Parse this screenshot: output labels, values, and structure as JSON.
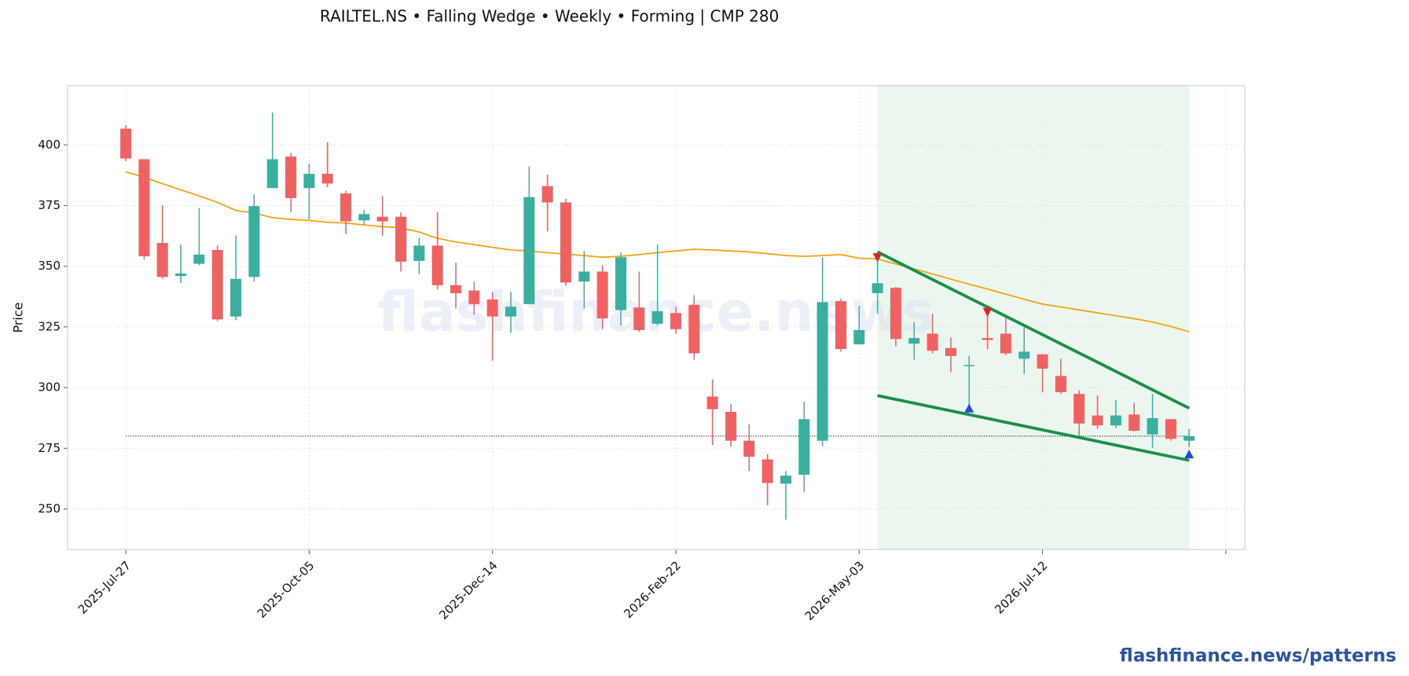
{
  "chart_data": {
    "type": "candlestick",
    "title": "RAILTEL.NS  •  Falling Wedge  •  Weekly  •  Forming  |  CMP 280",
    "y_label": "Price",
    "watermark": "flashfinance.news",
    "footer": "flashfinance.news/patterns",
    "categories": [
      "2025-Jul-27",
      null,
      null,
      null,
      null,
      null,
      null,
      null,
      null,
      null,
      "2025-Oct-05",
      null,
      null,
      null,
      null,
      null,
      null,
      null,
      null,
      null,
      "2025-Dec-14",
      null,
      null,
      null,
      null,
      null,
      null,
      null,
      null,
      null,
      "2026-Feb-22",
      null,
      null,
      null,
      null,
      null,
      null,
      null,
      null,
      null,
      "2026-May-03",
      null,
      null,
      null,
      null,
      null,
      null,
      null,
      null,
      null,
      "2026-Jul-12",
      null,
      null,
      null,
      null,
      null,
      null,
      null,
      null
    ],
    "open": [
      406.7,
      394.1,
      359.6,
      346,
      351,
      356.7,
      329.3,
      345.6,
      382.2,
      395.2,
      382.2,
      388.1,
      380,
      368.9,
      370.4,
      370.4,
      352.2,
      358.5,
      342.2,
      340,
      336.3,
      329.3,
      334.4,
      383,
      376.3,
      343.7,
      347.8,
      331.9,
      333,
      326.3,
      330.7,
      334.1,
      296.3,
      290,
      278.1,
      270.4,
      260.4,
      264.1,
      278.1,
      335.6,
      317.8,
      338.9,
      341.1,
      318.1,
      322.2,
      316.3,
      308.9,
      320.4,
      322.2,
      311.9,
      313.7,
      304.8,
      297.4,
      288.5,
      284.4,
      288.9,
      280.7,
      287,
      278.1
    ],
    "high": [
      408.1,
      394.1,
      375.2,
      358.9,
      374,
      358.5,
      362.6,
      379.6,
      413.3,
      396.7,
      392.2,
      401.1,
      381.1,
      373.3,
      378.9,
      372.2,
      361.8,
      372.2,
      351.5,
      343.7,
      339.3,
      339.3,
      391.1,
      387.8,
      377.8,
      356.3,
      350.4,
      355.6,
      347.8,
      358.9,
      333.3,
      338.1,
      303.3,
      293.3,
      284.8,
      272.6,
      265.6,
      294.1,
      353.7,
      336.7,
      333.7,
      354.4,
      341.5,
      327,
      330.4,
      320.7,
      313,
      333.3,
      330,
      324.8,
      313.7,
      311.9,
      298.9,
      296.7,
      294.8,
      293.7,
      297.4,
      287,
      283
    ],
    "low": [
      393.3,
      352.6,
      344.8,
      343,
      350.4,
      327.4,
      327.8,
      343.7,
      382.2,
      372.2,
      369.3,
      382.6,
      363.3,
      367,
      362.6,
      347.8,
      346.7,
      340.4,
      332.6,
      330,
      311.1,
      322.6,
      334.4,
      364.4,
      341.9,
      332.6,
      324.1,
      325.6,
      323,
      325.6,
      322.2,
      311.5,
      276.3,
      275.6,
      265.6,
      251.5,
      245.6,
      257,
      275.9,
      314.8,
      317.8,
      330.4,
      317,
      311.5,
      314.1,
      306.3,
      290.7,
      315.9,
      313.3,
      305.6,
      298.1,
      297.4,
      280,
      283,
      283.3,
      281.9,
      275.2,
      278.1,
      275.6
    ],
    "close": [
      394.4,
      354.1,
      345.6,
      347,
      354.8,
      328.1,
      344.8,
      374.8,
      394.1,
      378.1,
      388.1,
      384.1,
      368.5,
      371.5,
      368.5,
      351.9,
      358.5,
      342.2,
      338.9,
      334.4,
      329.3,
      333.3,
      378.5,
      376.3,
      343.3,
      347.8,
      328.5,
      353.7,
      323.7,
      331.5,
      324.1,
      314.1,
      291.1,
      278.1,
      271.5,
      260.7,
      263.7,
      287,
      335.2,
      315.9,
      323.7,
      343,
      320,
      320.4,
      315.2,
      313,
      309.3,
      319.6,
      314.1,
      314.8,
      307.8,
      298.1,
      285.2,
      284.4,
      288.5,
      282.2,
      287.4,
      278.9,
      280
    ],
    "up_color": "#3aaf9f",
    "down_color": "#f06262",
    "moving_average": {
      "color": "#f5a00b",
      "values": [
        388.9,
        386.7,
        384,
        381.5,
        379,
        376.3,
        373,
        371.9,
        370,
        369.3,
        368.9,
        368.1,
        367.8,
        367,
        366.3,
        365.9,
        364.1,
        361.5,
        360,
        358.9,
        357.8,
        356.7,
        356.3,
        355.6,
        355,
        354.4,
        353.7,
        354.1,
        354.8,
        355.6,
        356.3,
        357,
        356.7,
        356.3,
        355.9,
        355.2,
        354.4,
        354.1,
        354.4,
        354.8,
        353.3,
        353,
        350.9,
        348.9,
        346.8,
        344.7,
        342.6,
        340.6,
        338.5,
        336.4,
        334.4,
        333.2,
        332,
        330.8,
        329.6,
        328.4,
        327,
        325.2,
        323
      ]
    },
    "wedge": {
      "color": "#1a8f4a",
      "upper": {
        "x": [
          41,
          58
        ],
        "values": [
          355.9,
          291.5
        ]
      },
      "lower": {
        "x": [
          41,
          58
        ],
        "values": [
          296.7,
          270
        ]
      }
    },
    "pattern_zone": {
      "x": [
        41,
        58
      ],
      "color": "#e8f5ec"
    },
    "cmp_line": {
      "x": [
        0,
        58
      ],
      "value": 280
    },
    "pivot_highs": {
      "color": "#d62728",
      "x": [
        41,
        47
      ],
      "values": [
        354,
        331.5
      ]
    },
    "pivot_lows": {
      "color": "#1f4fd6",
      "x": [
        46,
        58
      ],
      "values": [
        291.1,
        272.2
      ]
    },
    "ylim": [
      233.3,
      424.4
    ],
    "yticks": [
      250,
      275,
      300,
      325,
      350,
      375,
      400
    ],
    "grid": true
  }
}
